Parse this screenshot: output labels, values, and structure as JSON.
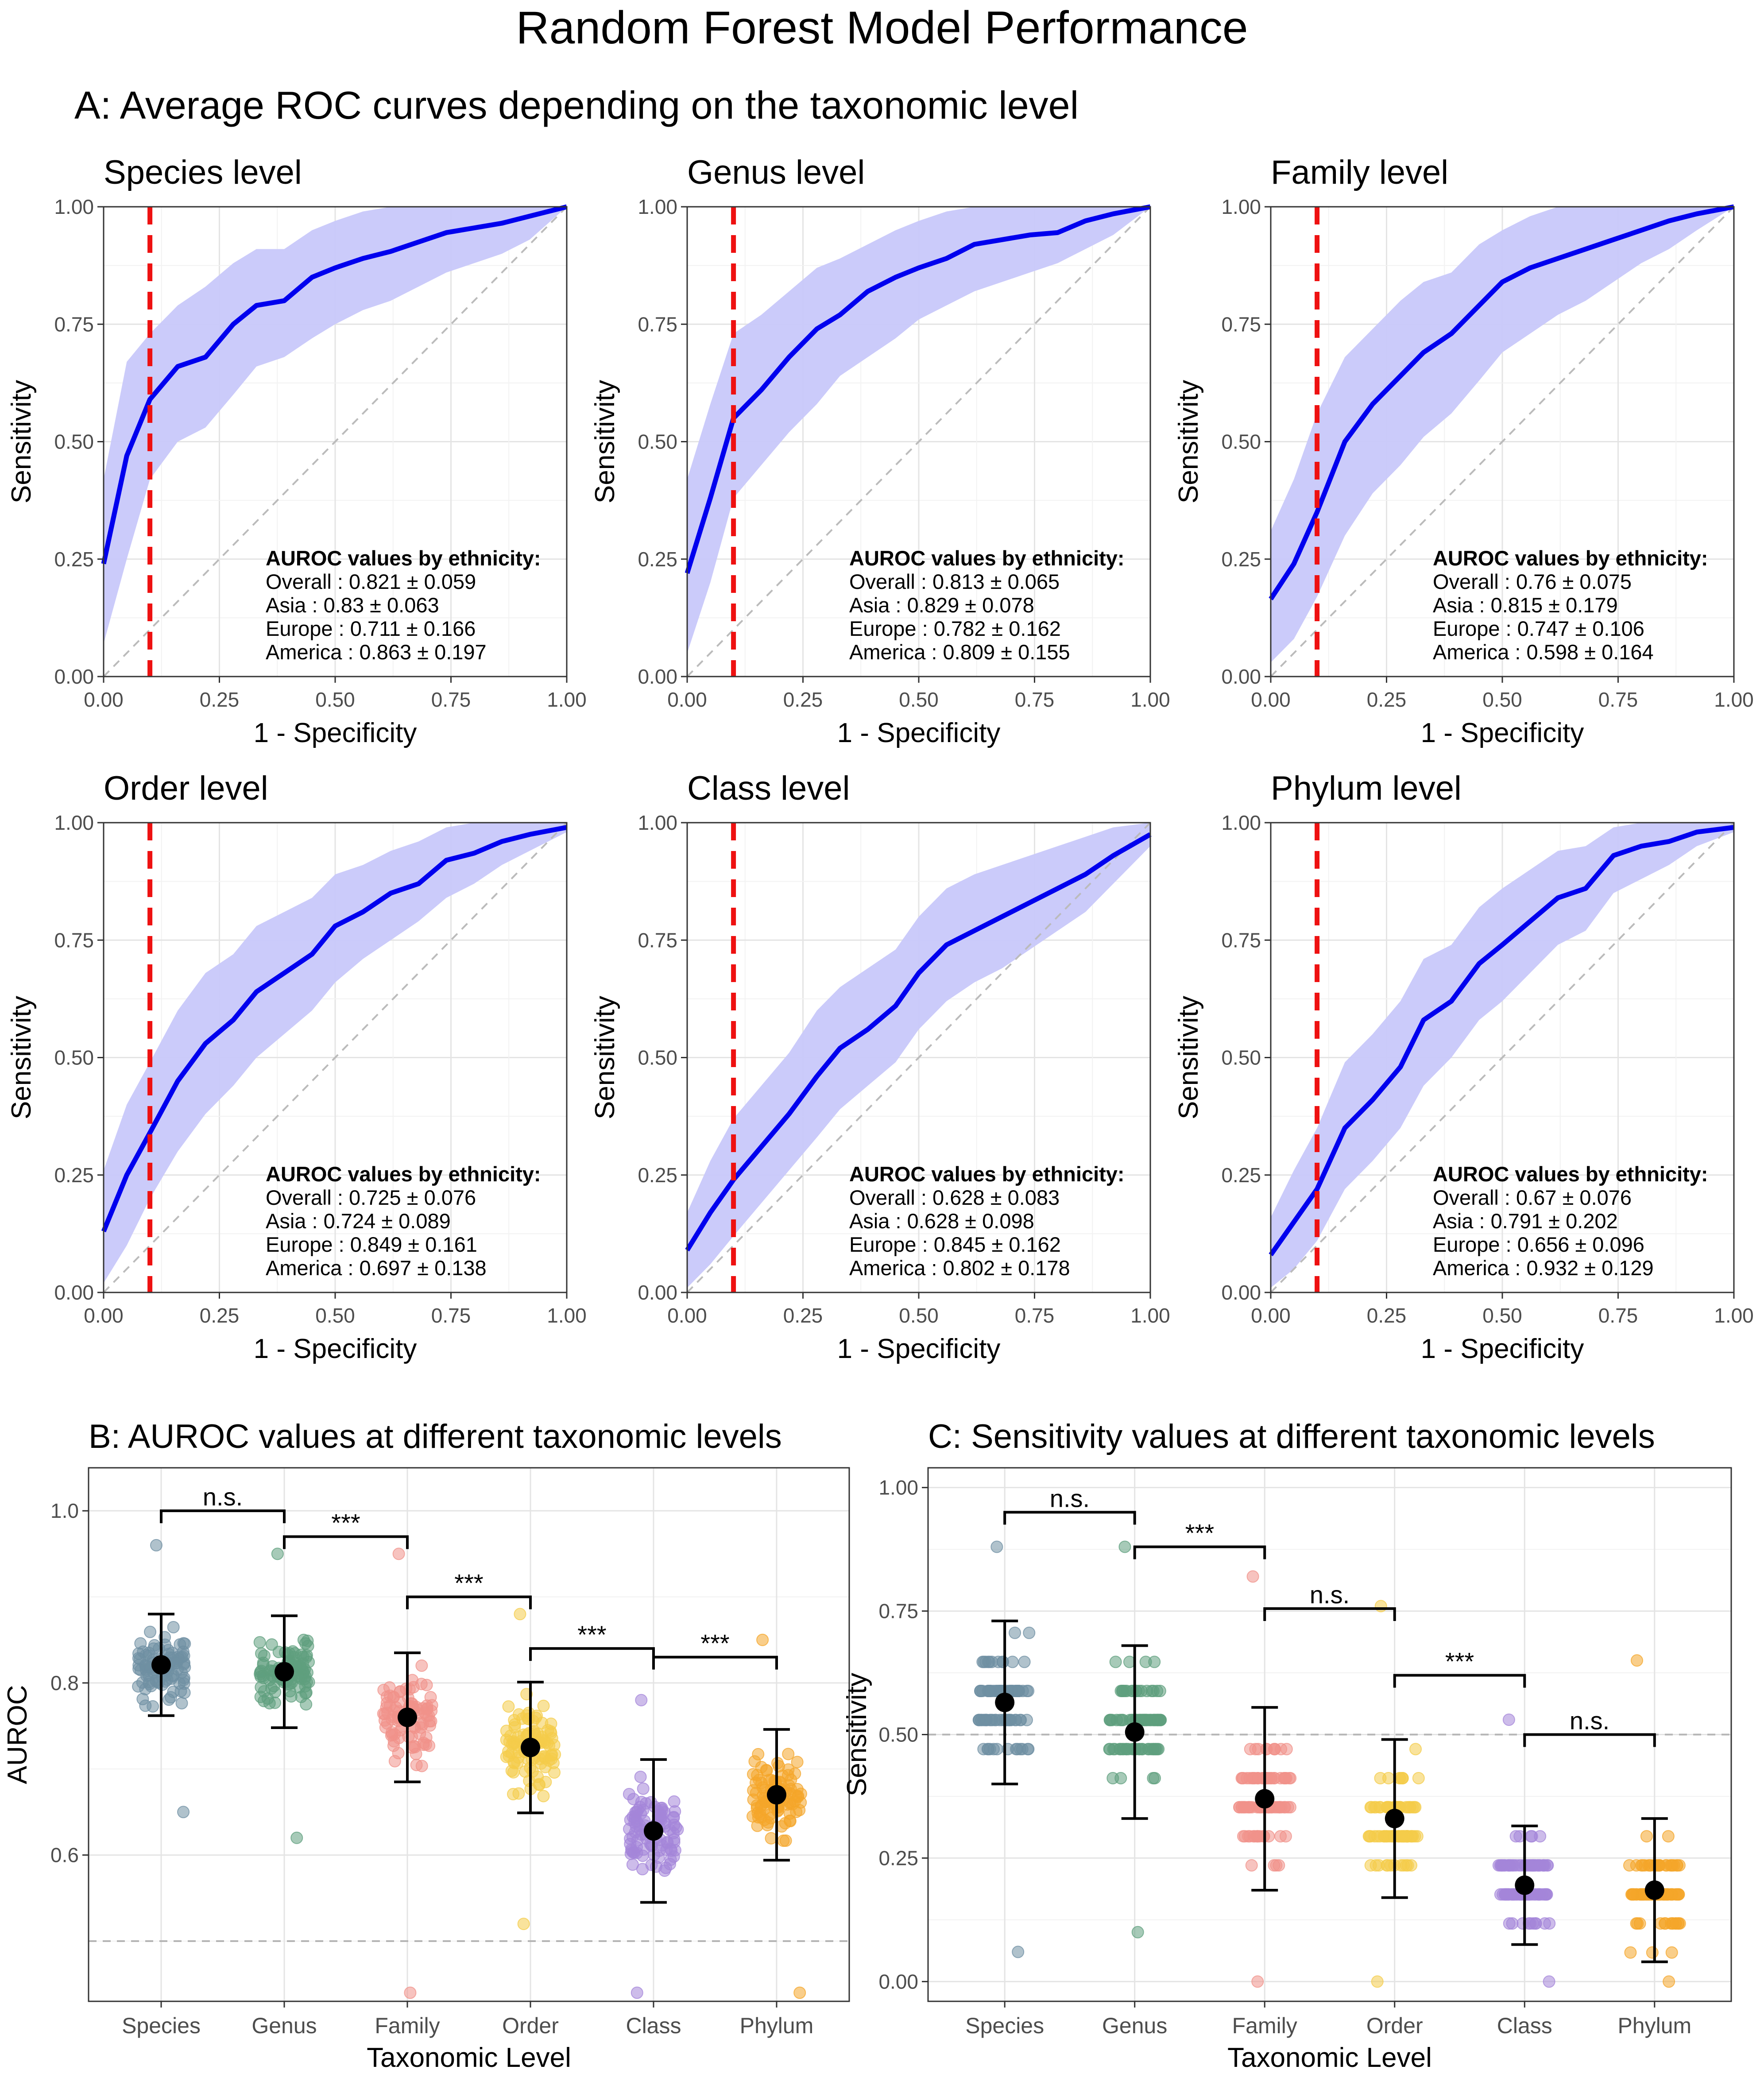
{
  "title": "Random Forest Model Performance",
  "panel_a_title": "A: Average ROC curves depending on the taxonomic level",
  "panel_b_title": "B: AUROC values at different taxonomic levels",
  "panel_c_title": "C: Sensitivity values at different taxonomic levels",
  "auroc_header": "AUROC values by ethnicity:",
  "colors": {
    "roc_line": "#0000ee",
    "roc_band": "#c8c8fa",
    "threshold": "#ee1111",
    "diagonal": "#bbbbbb",
    "Species": "#6f8fa3",
    "Genus": "#5f9f7d",
    "Family": "#f0918a",
    "Order": "#f4cc4a",
    "Class": "#a485d9",
    "Phylum": "#f4a52a"
  },
  "chart_data": [
    {
      "type": "line",
      "title": "Species level",
      "xlabel": "1 - Specificity",
      "ylabel": "Sensitivity",
      "xlim": [
        0,
        1
      ],
      "ylim": [
        0,
        1
      ],
      "threshold_x": 0.1,
      "x": [
        0,
        0.05,
        0.1,
        0.16,
        0.22,
        0.28,
        0.33,
        0.39,
        0.45,
        0.5,
        0.56,
        0.62,
        0.68,
        0.74,
        0.8,
        0.86,
        0.92,
        1
      ],
      "y": [
        0.24,
        0.47,
        0.59,
        0.66,
        0.68,
        0.75,
        0.79,
        0.8,
        0.85,
        0.87,
        0.89,
        0.905,
        0.925,
        0.945,
        0.955,
        0.965,
        0.98,
        1
      ],
      "lower": [
        0.07,
        0.25,
        0.42,
        0.5,
        0.53,
        0.6,
        0.66,
        0.68,
        0.72,
        0.75,
        0.78,
        0.8,
        0.83,
        0.86,
        0.88,
        0.9,
        0.93,
        1
      ],
      "upper": [
        0.42,
        0.67,
        0.73,
        0.79,
        0.83,
        0.88,
        0.91,
        0.91,
        0.95,
        0.97,
        0.99,
        1,
        1,
        1,
        1,
        1,
        1,
        1
      ],
      "annotation": [
        {
          "label": "Overall",
          "mean": "0.821",
          "sd": "0.059"
        },
        {
          "label": "Asia",
          "mean": "0.83",
          "sd": "0.063"
        },
        {
          "label": "Europe",
          "mean": "0.711",
          "sd": "0.166"
        },
        {
          "label": "America",
          "mean": "0.863",
          "sd": "0.197"
        }
      ]
    },
    {
      "type": "line",
      "title": "Genus level",
      "xlabel": "1 - Specificity",
      "ylabel": "Sensitivity",
      "xlim": [
        0,
        1
      ],
      "ylim": [
        0,
        1
      ],
      "threshold_x": 0.1,
      "x": [
        0,
        0.05,
        0.1,
        0.16,
        0.22,
        0.28,
        0.33,
        0.39,
        0.45,
        0.5,
        0.56,
        0.62,
        0.68,
        0.74,
        0.8,
        0.86,
        0.92,
        1
      ],
      "y": [
        0.22,
        0.38,
        0.55,
        0.61,
        0.68,
        0.74,
        0.77,
        0.82,
        0.85,
        0.87,
        0.89,
        0.92,
        0.93,
        0.94,
        0.945,
        0.97,
        0.985,
        1
      ],
      "lower": [
        0.05,
        0.2,
        0.38,
        0.45,
        0.52,
        0.58,
        0.64,
        0.68,
        0.72,
        0.76,
        0.79,
        0.82,
        0.84,
        0.86,
        0.88,
        0.91,
        0.94,
        1
      ],
      "upper": [
        0.42,
        0.58,
        0.73,
        0.77,
        0.82,
        0.87,
        0.89,
        0.92,
        0.95,
        0.97,
        0.99,
        1,
        1,
        1,
        1,
        1,
        1,
        1
      ],
      "annotation": [
        {
          "label": "Overall",
          "mean": "0.813",
          "sd": "0.065"
        },
        {
          "label": "Asia",
          "mean": "0.829",
          "sd": "0.078"
        },
        {
          "label": "Europe",
          "mean": "0.782",
          "sd": "0.162"
        },
        {
          "label": "America",
          "mean": "0.809",
          "sd": "0.155"
        }
      ]
    },
    {
      "type": "line",
      "title": "Family level",
      "xlabel": "1 - Specificity",
      "ylabel": "Sensitivity",
      "xlim": [
        0,
        1
      ],
      "ylim": [
        0,
        1
      ],
      "threshold_x": 0.1,
      "x": [
        0,
        0.05,
        0.1,
        0.16,
        0.22,
        0.28,
        0.33,
        0.39,
        0.45,
        0.5,
        0.56,
        0.62,
        0.68,
        0.74,
        0.8,
        0.86,
        0.92,
        1
      ],
      "y": [
        0.165,
        0.24,
        0.35,
        0.5,
        0.58,
        0.64,
        0.69,
        0.73,
        0.79,
        0.84,
        0.87,
        0.89,
        0.91,
        0.93,
        0.95,
        0.97,
        0.985,
        1
      ],
      "lower": [
        0.03,
        0.08,
        0.17,
        0.3,
        0.39,
        0.45,
        0.51,
        0.56,
        0.63,
        0.69,
        0.73,
        0.77,
        0.8,
        0.84,
        0.88,
        0.91,
        0.95,
        1
      ],
      "upper": [
        0.31,
        0.42,
        0.56,
        0.68,
        0.74,
        0.8,
        0.84,
        0.86,
        0.92,
        0.95,
        0.98,
        1,
        1,
        1,
        1,
        1,
        1,
        1
      ],
      "annotation": [
        {
          "label": "Overall",
          "mean": "0.76",
          "sd": "0.075"
        },
        {
          "label": "Asia",
          "mean": "0.815",
          "sd": "0.179"
        },
        {
          "label": "Europe",
          "mean": "0.747",
          "sd": "0.106"
        },
        {
          "label": "America",
          "mean": "0.598",
          "sd": "0.164"
        }
      ]
    },
    {
      "type": "line",
      "title": "Order level",
      "xlabel": "1 - Specificity",
      "ylabel": "Sensitivity",
      "xlim": [
        0,
        1
      ],
      "ylim": [
        0,
        1
      ],
      "threshold_x": 0.1,
      "x": [
        0,
        0.05,
        0.1,
        0.16,
        0.22,
        0.28,
        0.33,
        0.39,
        0.45,
        0.5,
        0.56,
        0.62,
        0.68,
        0.74,
        0.8,
        0.86,
        0.92,
        1
      ],
      "y": [
        0.13,
        0.25,
        0.34,
        0.45,
        0.53,
        0.58,
        0.64,
        0.68,
        0.72,
        0.78,
        0.81,
        0.85,
        0.87,
        0.92,
        0.935,
        0.96,
        0.975,
        0.99
      ],
      "lower": [
        0.02,
        0.1,
        0.2,
        0.3,
        0.38,
        0.44,
        0.5,
        0.55,
        0.6,
        0.66,
        0.71,
        0.75,
        0.79,
        0.84,
        0.87,
        0.91,
        0.94,
        0.98
      ],
      "upper": [
        0.26,
        0.4,
        0.49,
        0.6,
        0.68,
        0.72,
        0.78,
        0.81,
        0.84,
        0.89,
        0.91,
        0.94,
        0.96,
        0.99,
        1,
        1,
        1,
        1
      ],
      "annotation": [
        {
          "label": "Overall",
          "mean": "0.725",
          "sd": "0.076"
        },
        {
          "label": "Asia",
          "mean": "0.724",
          "sd": "0.089"
        },
        {
          "label": "Europe",
          "mean": "0.849",
          "sd": "0.161"
        },
        {
          "label": "America",
          "mean": "0.697",
          "sd": "0.138"
        }
      ]
    },
    {
      "type": "line",
      "title": "Class level",
      "xlabel": "1 - Specificity",
      "ylabel": "Sensitivity",
      "xlim": [
        0,
        1
      ],
      "ylim": [
        0,
        1
      ],
      "threshold_x": 0.1,
      "x": [
        0,
        0.05,
        0.1,
        0.16,
        0.22,
        0.28,
        0.33,
        0.39,
        0.45,
        0.5,
        0.56,
        0.62,
        0.68,
        0.74,
        0.8,
        0.86,
        0.92,
        1
      ],
      "y": [
        0.09,
        0.17,
        0.24,
        0.31,
        0.38,
        0.46,
        0.52,
        0.56,
        0.61,
        0.68,
        0.74,
        0.77,
        0.8,
        0.83,
        0.86,
        0.89,
        0.93,
        0.975
      ],
      "lower": [
        0.01,
        0.06,
        0.12,
        0.19,
        0.26,
        0.33,
        0.39,
        0.44,
        0.49,
        0.56,
        0.62,
        0.66,
        0.69,
        0.73,
        0.77,
        0.81,
        0.87,
        0.95
      ],
      "upper": [
        0.17,
        0.28,
        0.37,
        0.44,
        0.51,
        0.6,
        0.65,
        0.69,
        0.73,
        0.8,
        0.86,
        0.89,
        0.91,
        0.93,
        0.95,
        0.97,
        0.99,
        1
      ],
      "annotation": [
        {
          "label": "Overall",
          "mean": "0.628",
          "sd": "0.083"
        },
        {
          "label": "Asia",
          "mean": "0.628",
          "sd": "0.098"
        },
        {
          "label": "Europe",
          "mean": "0.845",
          "sd": "0.162"
        },
        {
          "label": "America",
          "mean": "0.802",
          "sd": "0.178"
        }
      ]
    },
    {
      "type": "line",
      "title": "Phylum level",
      "xlabel": "1 - Specificity",
      "ylabel": "Sensitivity",
      "xlim": [
        0,
        1
      ],
      "ylim": [
        0,
        1
      ],
      "threshold_x": 0.1,
      "x": [
        0,
        0.05,
        0.1,
        0.16,
        0.22,
        0.28,
        0.33,
        0.39,
        0.45,
        0.5,
        0.56,
        0.62,
        0.68,
        0.74,
        0.8,
        0.86,
        0.92,
        1
      ],
      "y": [
        0.08,
        0.15,
        0.22,
        0.35,
        0.41,
        0.48,
        0.58,
        0.62,
        0.7,
        0.74,
        0.79,
        0.84,
        0.86,
        0.93,
        0.95,
        0.96,
        0.98,
        0.99
      ],
      "lower": [
        0.01,
        0.05,
        0.11,
        0.22,
        0.28,
        0.35,
        0.44,
        0.5,
        0.58,
        0.62,
        0.68,
        0.74,
        0.77,
        0.85,
        0.88,
        0.91,
        0.95,
        0.98
      ],
      "upper": [
        0.16,
        0.26,
        0.35,
        0.49,
        0.55,
        0.62,
        0.71,
        0.74,
        0.82,
        0.86,
        0.9,
        0.94,
        0.95,
        0.99,
        1,
        1,
        1,
        1
      ],
      "annotation": [
        {
          "label": "Overall",
          "mean": "0.67",
          "sd": "0.076"
        },
        {
          "label": "Asia",
          "mean": "0.791",
          "sd": "0.202"
        },
        {
          "label": "Europe",
          "mean": "0.656",
          "sd": "0.096"
        },
        {
          "label": "America",
          "mean": "0.932",
          "sd": "0.129"
        }
      ]
    },
    {
      "type": "scatter",
      "title": "B: AUROC values at different taxonomic levels",
      "xlabel": "Taxonomic Level",
      "ylabel": "AUROC",
      "ylim": [
        0.43,
        1.05
      ],
      "yticks": [
        "0.6",
        "0.8",
        "1.0"
      ],
      "ref_line": 0.5,
      "categories": [
        "Species",
        "Genus",
        "Family",
        "Order",
        "Class",
        "Phylum"
      ],
      "means": [
        0.821,
        0.813,
        0.76,
        0.725,
        0.628,
        0.67
      ],
      "sd": [
        0.059,
        0.065,
        0.075,
        0.076,
        0.083,
        0.076
      ],
      "point_min": [
        0.65,
        0.62,
        0.44,
        0.52,
        0.44,
        0.44
      ],
      "point_max": [
        0.96,
        0.95,
        0.95,
        0.88,
        0.78,
        0.85
      ],
      "comparisons": [
        {
          "from": 0,
          "to": 1,
          "label": "n.s.",
          "y": 1.0
        },
        {
          "from": 1,
          "to": 2,
          "label": "***",
          "y": 0.97
        },
        {
          "from": 2,
          "to": 3,
          "label": "***",
          "y": 0.9
        },
        {
          "from": 3,
          "to": 4,
          "label": "***",
          "y": 0.84
        },
        {
          "from": 4,
          "to": 5,
          "label": "***",
          "y": 0.83
        }
      ]
    },
    {
      "type": "scatter",
      "title": "C: Sensitivity values at different taxonomic levels",
      "xlabel": "Taxonomic Level",
      "ylabel": "Sensitivity",
      "ylim": [
        -0.04,
        1.04
      ],
      "yticks": [
        "0.00",
        "0.25",
        "0.50",
        "0.75",
        "1.00"
      ],
      "ref_line": 0.5,
      "categories": [
        "Species",
        "Genus",
        "Family",
        "Order",
        "Class",
        "Phylum"
      ],
      "means": [
        0.565,
        0.505,
        0.37,
        0.33,
        0.195,
        0.185
      ],
      "sd": [
        0.165,
        0.175,
        0.185,
        0.16,
        0.12,
        0.145
      ],
      "point_min": [
        0.06,
        0.1,
        0.0,
        0.0,
        0.0,
        0.0
      ],
      "point_max": [
        0.88,
        0.88,
        0.82,
        0.76,
        0.53,
        0.65
      ],
      "comparisons": [
        {
          "from": 0,
          "to": 1,
          "label": "n.s.",
          "y": 0.95
        },
        {
          "from": 1,
          "to": 2,
          "label": "***",
          "y": 0.88
        },
        {
          "from": 2,
          "to": 3,
          "label": "n.s.",
          "y": 0.755
        },
        {
          "from": 3,
          "to": 4,
          "label": "***",
          "y": 0.62
        },
        {
          "from": 4,
          "to": 5,
          "label": "n.s.",
          "y": 0.5
        }
      ]
    }
  ]
}
